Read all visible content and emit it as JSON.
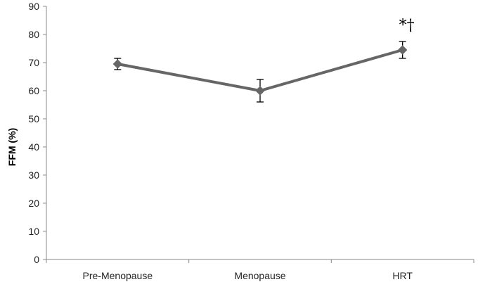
{
  "chart_data": {
    "type": "line",
    "title": "",
    "xlabel": "",
    "ylabel": "FFM (%)",
    "ylim": [
      0,
      90
    ],
    "yticks": [
      0,
      10,
      20,
      30,
      40,
      50,
      60,
      70,
      80,
      90
    ],
    "grid": false,
    "legend": "none",
    "categories": [
      "Pre-Menopause",
      "Menopause",
      "HRT"
    ],
    "series": [
      {
        "values": [
          69.5,
          60,
          74.5
        ],
        "error": [
          2,
          4,
          3
        ],
        "marker": "diamond",
        "color": "#666666"
      }
    ],
    "annotations": [
      {
        "category": "HRT",
        "text": "*†"
      }
    ]
  }
}
